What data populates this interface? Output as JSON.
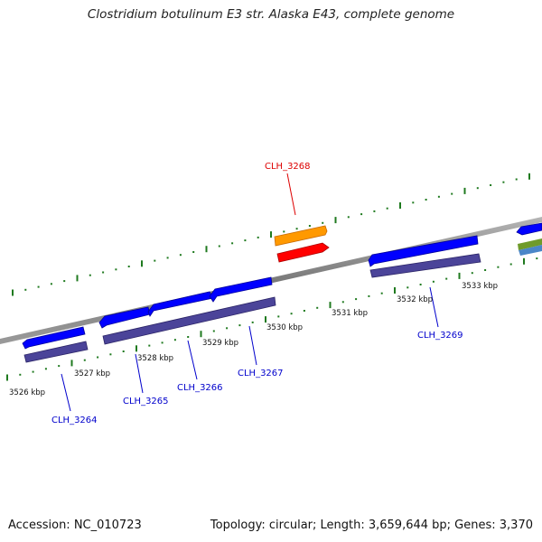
{
  "title": "Clostridium botulinum E3 str. Alaska E43, complete genome",
  "footer": {
    "accession": "Accession: NC_010723",
    "summary": "Topology: circular; Length: 3,659,644 bp; Genes: 3,370"
  },
  "colors": {
    "background": "#ffffff",
    "backbone": "#8c8c8c",
    "tick": "#1f7a1f",
    "gene_forward": "#0000ff",
    "gene_reverse_track": "#4b4499",
    "gene_label": "#0000cc",
    "highlight_label": "#dd0000",
    "highlight_gene_a": "#ff9900",
    "highlight_gene_b": "#ff0000"
  },
  "scale_labels": [
    "3526 kbp",
    "3527 kbp",
    "3528 kbp",
    "3529 kbp",
    "3530 kbp",
    "3531 kbp",
    "3532 kbp",
    "3533 kbp"
  ],
  "genes": [
    {
      "id": "CLH_3264",
      "highlighted": false
    },
    {
      "id": "CLH_3265",
      "highlighted": false
    },
    {
      "id": "CLH_3266",
      "highlighted": false
    },
    {
      "id": "CLH_3267",
      "highlighted": false
    },
    {
      "id": "CLH_3268",
      "highlighted": true
    },
    {
      "id": "CLH_3269",
      "highlighted": false
    }
  ]
}
